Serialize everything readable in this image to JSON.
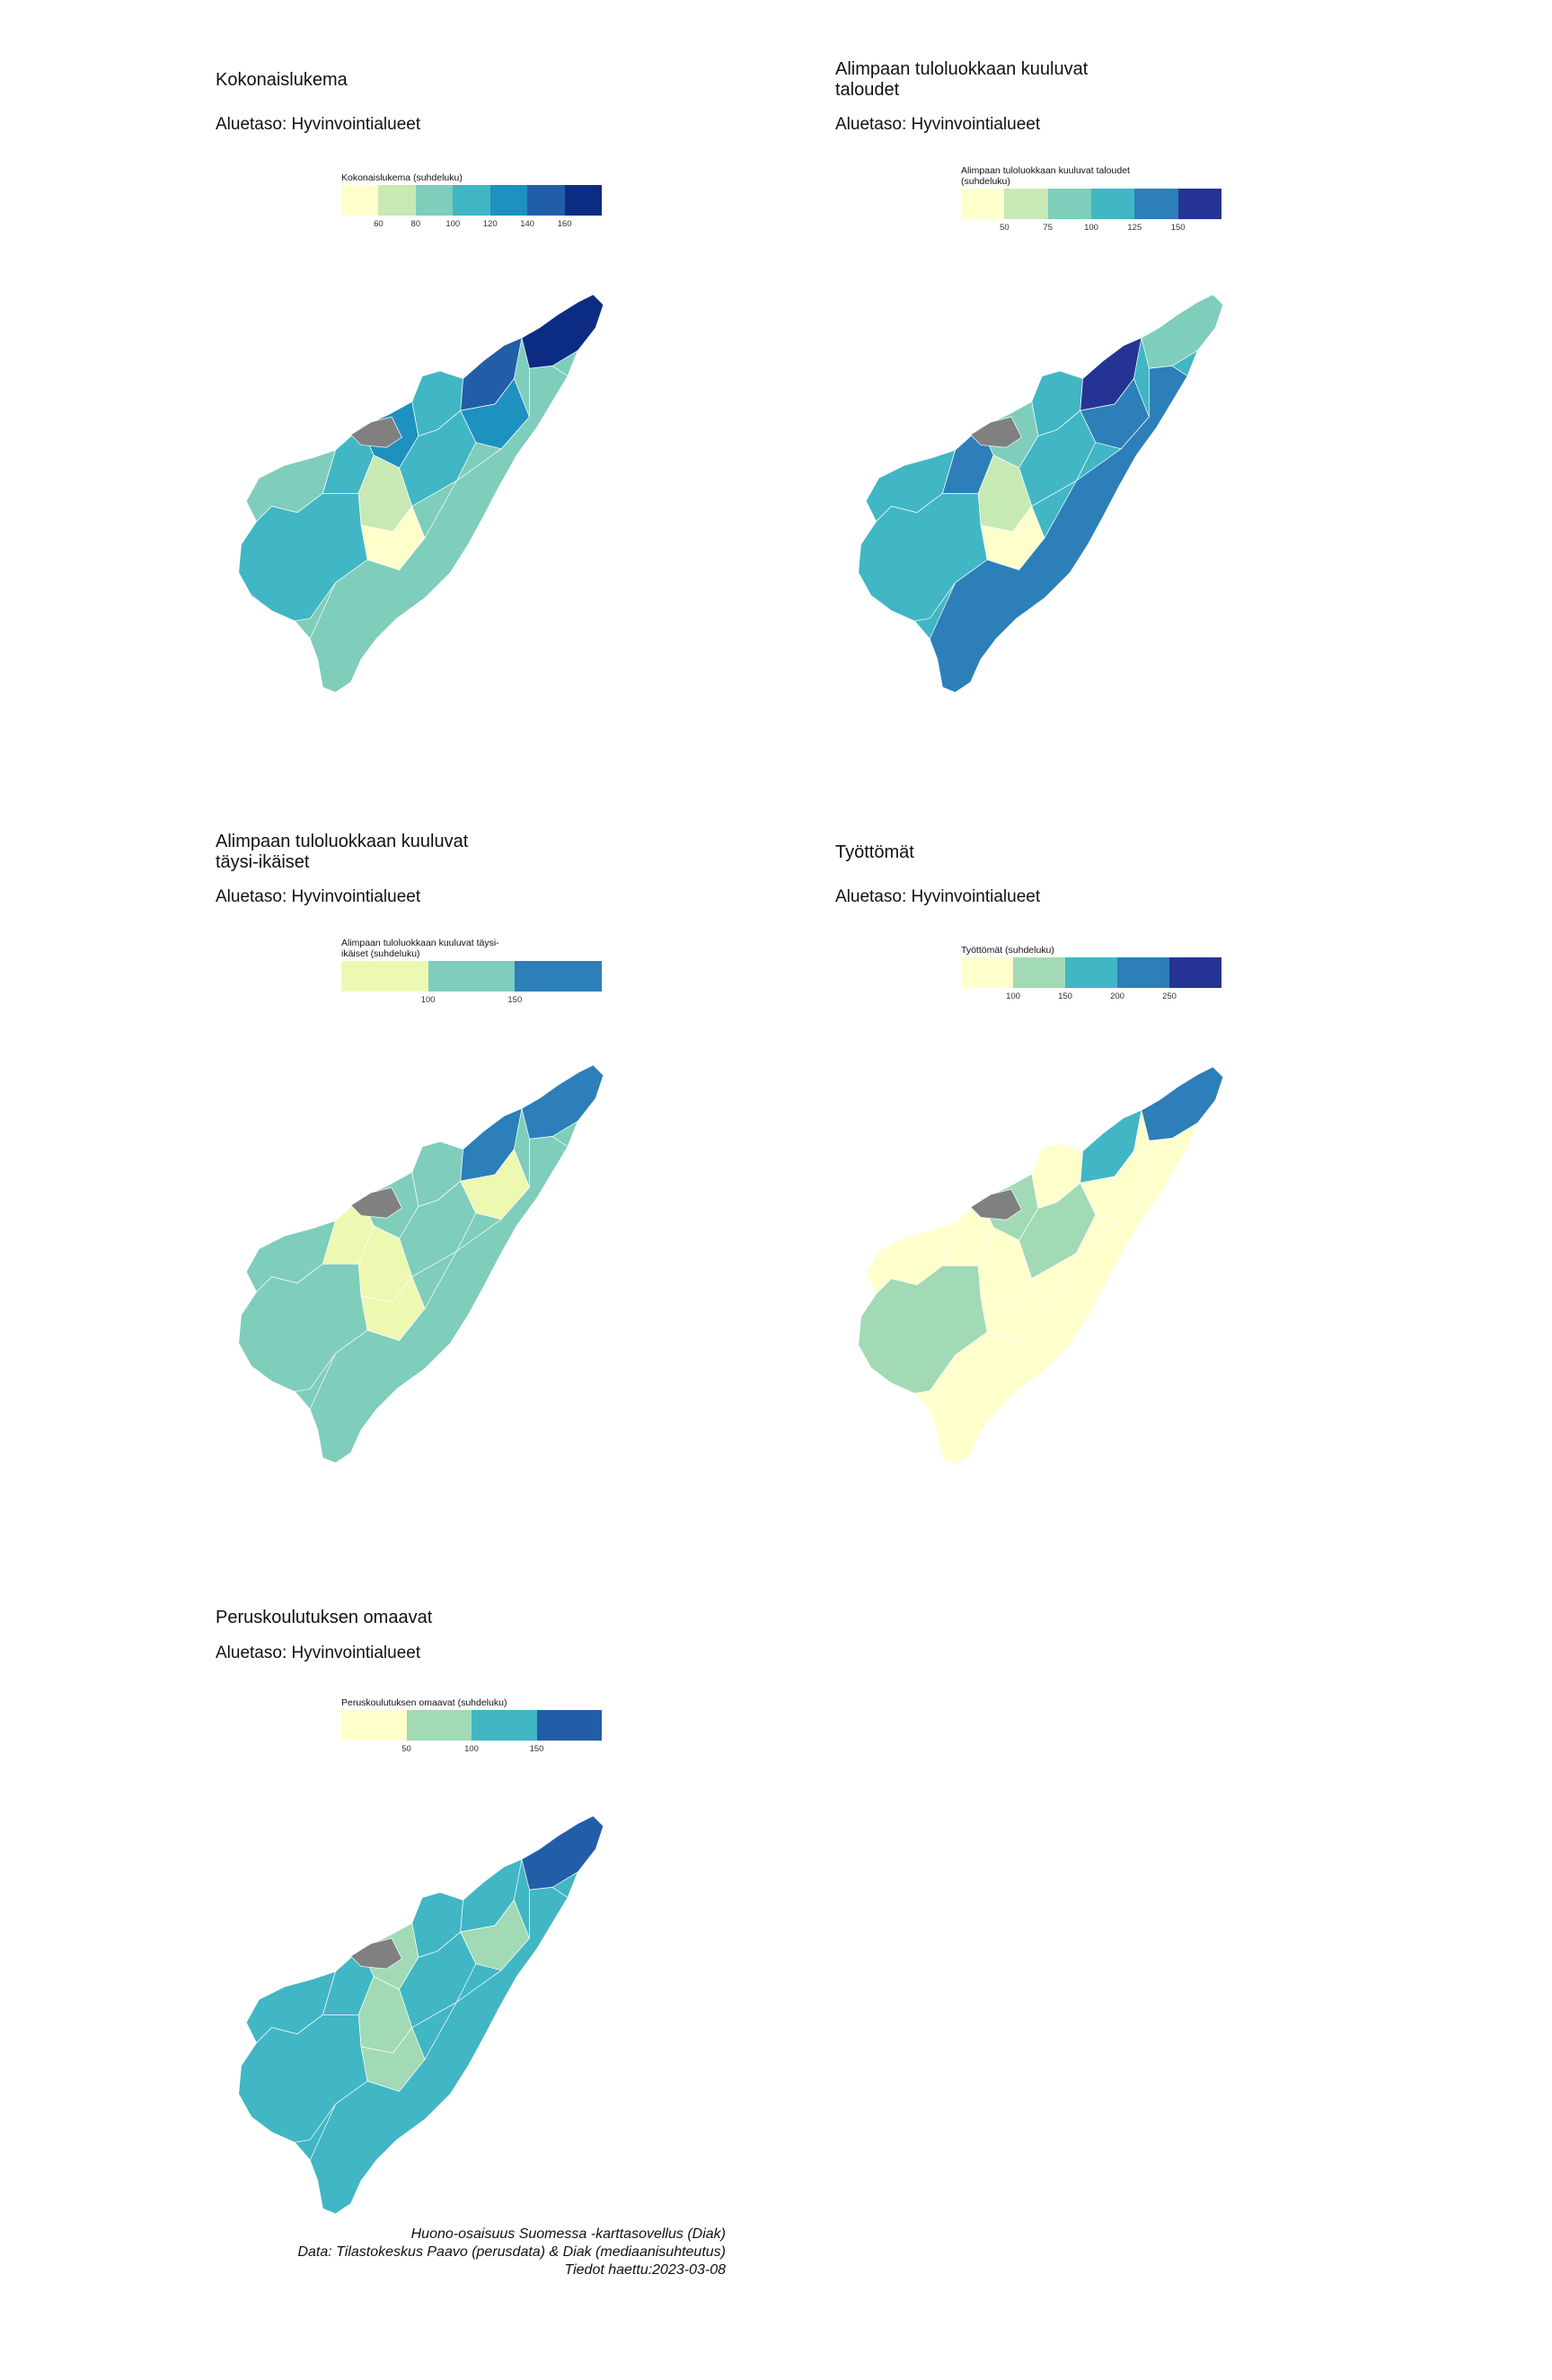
{
  "panels": [
    {
      "id": "p1",
      "title": "Kokonaislukema",
      "subtitle": "Aluetaso: Hyvinvointialueet",
      "legend_title": "Kokonaislukema (suhdeluku)",
      "legend_colors": [
        "#ffffcc",
        "#c7e9b4",
        "#7fcdbb",
        "#41b6c4",
        "#1d91c0",
        "#225ea8",
        "#0c2c84"
      ],
      "legend_ticks": [
        "60",
        "80",
        "100",
        "120",
        "140",
        "160"
      ],
      "fill_palette": [
        "#7fcdbb",
        "#41b6c4",
        "#1d91c0",
        "#41b6c4",
        "#225ea8",
        "#c7e9b4",
        "#41b6c4",
        "#1d91c0",
        "#ffffcc",
        "#41b6c4",
        "#0c2c84",
        "#7fcdbb"
      ]
    },
    {
      "id": "p2",
      "title": "Alimpaan tuloluokkaan kuuluvat taloudet",
      "subtitle": "Aluetaso: Hyvinvointialueet",
      "legend_title": "Alimpaan tuloluokkaan kuuluvat taloudet (suhdeluku)",
      "legend_colors": [
        "#ffffcc",
        "#c7e9b4",
        "#7fcdbb",
        "#41b6c4",
        "#2c7fb8",
        "#253494"
      ],
      "legend_ticks": [
        "50",
        "75",
        "100",
        "125",
        "150"
      ],
      "fill_palette": [
        "#41b6c4",
        "#2c7fb8",
        "#7fcdbb",
        "#41b6c4",
        "#253494",
        "#c7e9b4",
        "#41b6c4",
        "#2c7fb8",
        "#ffffcc",
        "#41b6c4",
        "#7fcdbb",
        "#2c7fb8"
      ]
    },
    {
      "id": "p3",
      "title": "Alimpaan tuloluokkaan kuuluvat täysi-ikäiset",
      "subtitle": "Aluetaso: Hyvinvointialueet",
      "legend_title": "Alimpaan tuloluokkaan kuuluvat täysi-ikäiset (suhdeluku)",
      "legend_colors": [
        "#edf8b1",
        "#7fcdbb",
        "#2c7fb8"
      ],
      "legend_ticks": [
        "100",
        "150"
      ],
      "fill_palette": [
        "#7fcdbb",
        "#edf8b1",
        "#7fcdbb",
        "#7fcdbb",
        "#2c7fb8",
        "#edf8b1",
        "#7fcdbb",
        "#edf8b1",
        "#edf8b1",
        "#7fcdbb",
        "#2c7fb8",
        "#7fcdbb"
      ]
    },
    {
      "id": "p4",
      "title": "Työttömät",
      "subtitle": "Aluetaso: Hyvinvointialueet",
      "legend_title": "Työttömät (suhdeluku)",
      "legend_colors": [
        "#ffffcc",
        "#a1dab4",
        "#41b6c4",
        "#2c7fb8",
        "#253494"
      ],
      "legend_ticks": [
        "100",
        "150",
        "200",
        "250"
      ],
      "fill_palette": [
        "#ffffcc",
        "#ffffcc",
        "#a1dab4",
        "#ffffcc",
        "#41b6c4",
        "#ffffcc",
        "#a1dab4",
        "#ffffcc",
        "#ffffcc",
        "#a1dab4",
        "#2c7fb8",
        "#ffffcc"
      ]
    },
    {
      "id": "p5",
      "title": "Peruskoulutuksen omaavat",
      "subtitle": "Aluetaso: Hyvinvointialueet",
      "legend_title": "Peruskoulutuksen omaavat (suhdeluku)",
      "legend_colors": [
        "#ffffcc",
        "#a1dab4",
        "#41b6c4",
        "#225ea8"
      ],
      "legend_ticks": [
        "50",
        "100",
        "150"
      ],
      "fill_palette": [
        "#41b6c4",
        "#41b6c4",
        "#a1dab4",
        "#41b6c4",
        "#41b6c4",
        "#a1dab4",
        "#41b6c4",
        "#a1dab4",
        "#a1dab4",
        "#41b6c4",
        "#225ea8",
        "#41b6c4"
      ]
    }
  ],
  "missing_color": "#808080",
  "caption": {
    "line1": "Huono-osaisuus Suomessa -karttasovellus (Diak)",
    "line2": "Data: Tilastokeskus Paavo (perusdata) & Diak (mediaanisuhteutus)",
    "line3": "Tiedot haettu:2023-03-08"
  }
}
